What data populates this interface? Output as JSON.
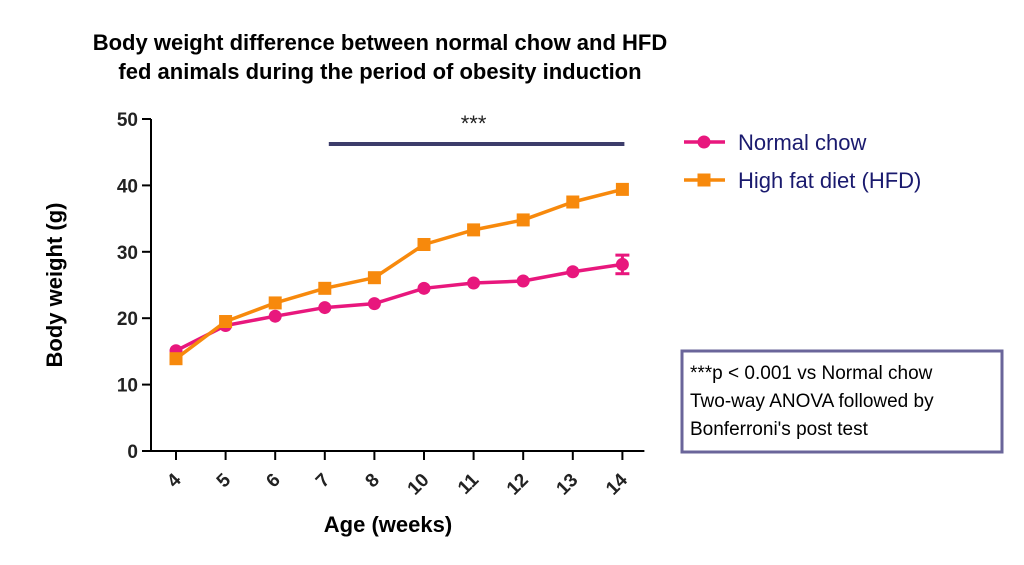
{
  "chart_data": {
    "type": "line",
    "title_line1": "Body weight difference between normal chow and HFD",
    "title_line2": "fed animals during the period of obesity induction",
    "xlabel": "Age (weeks)",
    "ylabel": "Body weight (g)",
    "categories": [
      "4",
      "5",
      "6",
      "7",
      "8",
      "10",
      "11",
      "12",
      "13",
      "14"
    ],
    "ylim": [
      0,
      50
    ],
    "yticks": [
      "0",
      "10",
      "20",
      "30",
      "40",
      "50"
    ],
    "series": [
      {
        "name": "Normal chow",
        "color": "#e8177d",
        "marker": "circle",
        "values": [
          15.1,
          18.9,
          20.3,
          21.6,
          22.2,
          24.5,
          25.3,
          25.6,
          27.0,
          28.1
        ],
        "error": [
          0,
          0,
          0,
          0,
          0,
          0,
          0,
          0,
          0,
          1.4
        ]
      },
      {
        "name": "High fat diet (HFD)",
        "color": "#f7890c",
        "marker": "square",
        "values": [
          13.9,
          19.5,
          22.3,
          24.5,
          26.1,
          31.1,
          33.3,
          34.8,
          37.5,
          39.4
        ],
        "error": [
          0,
          0,
          0,
          0,
          0,
          0,
          0,
          0,
          0,
          0
        ]
      }
    ],
    "significance": {
      "label": "***",
      "from": "7",
      "to": "14",
      "color": "#3d3d6b"
    },
    "legend_position": "top-right",
    "grid": false,
    "note": {
      "lines": [
        "***p < 0.001 vs Normal chow",
        "Two-way ANOVA followed by",
        "Bonferroni's post test"
      ],
      "border_color": "#6a659a"
    }
  }
}
